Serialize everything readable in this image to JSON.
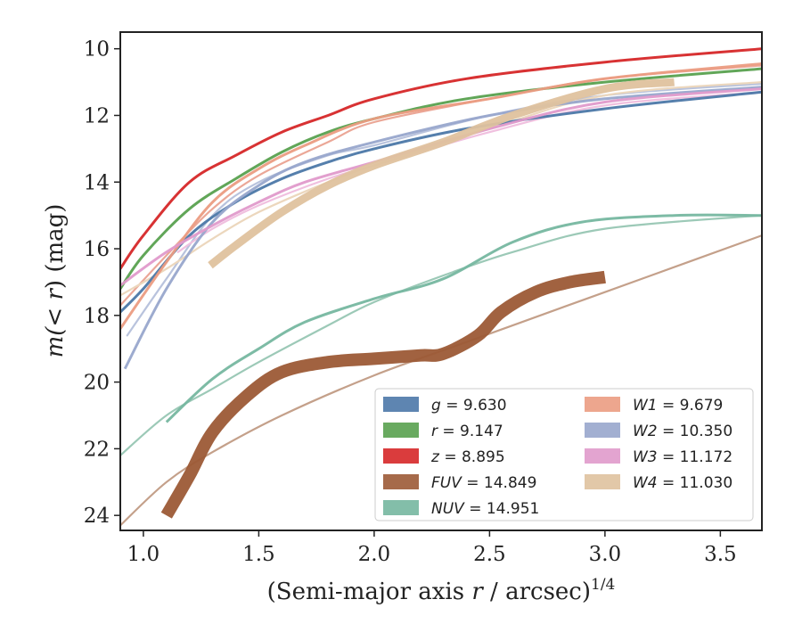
{
  "chart_data": {
    "type": "line",
    "title": "",
    "xlabel_main": "(Semi-major axis ",
    "xlabel_var": "r",
    "xlabel_tail": " / arcsec)",
    "xlabel_sup": "1/4",
    "ylabel_main": "m(",
    "ylabel_var": "< r",
    "ylabel_tail": ") (mag)",
    "xlim": [
      0.9,
      3.68
    ],
    "ylim": [
      24.45,
      9.5
    ],
    "y_inverted": true,
    "x_ticks": [
      1.0,
      1.5,
      2.0,
      2.5,
      3.0,
      3.5
    ],
    "x_tick_labels": [
      "1.0",
      "1.5",
      "2.0",
      "2.5",
      "3.0",
      "3.5"
    ],
    "y_ticks": [
      10,
      12,
      14,
      16,
      18,
      20,
      22,
      24
    ],
    "y_tick_labels": [
      "10",
      "12",
      "14",
      "16",
      "18",
      "20",
      "22",
      "24"
    ],
    "grid": false,
    "legend_position": "lower-right",
    "legend_columns": 2,
    "series": [
      {
        "band": "g",
        "value": "9.630",
        "color": "#4c78a8",
        "width": 3,
        "x": [
          0.9,
          1.0,
          1.2,
          1.4,
          1.6,
          1.8,
          2.0,
          2.4,
          3.0,
          3.68
        ],
        "y": [
          17.9,
          17.2,
          15.6,
          14.6,
          13.9,
          13.4,
          13.0,
          12.4,
          11.8,
          11.3
        ]
      },
      {
        "band": "r",
        "value": "9.147",
        "color": "#59a14f",
        "width": 3,
        "x": [
          0.9,
          1.0,
          1.2,
          1.4,
          1.6,
          1.8,
          2.0,
          2.4,
          3.0,
          3.68
        ],
        "y": [
          17.2,
          16.2,
          14.8,
          13.9,
          13.1,
          12.5,
          12.1,
          11.5,
          11.0,
          10.6
        ]
      },
      {
        "band": "z",
        "value": "8.895",
        "color": "#d62728",
        "width": 3,
        "x": [
          0.9,
          1.0,
          1.2,
          1.4,
          1.6,
          1.8,
          2.0,
          2.4,
          3.0,
          3.68
        ],
        "y": [
          16.6,
          15.6,
          14.0,
          13.2,
          12.5,
          12.0,
          11.5,
          10.9,
          10.4,
          10.0
        ]
      },
      {
        "band": "FUV",
        "value": "14.849",
        "color": "#9c5a36",
        "width": 14,
        "x": [
          1.1,
          1.2,
          1.3,
          1.45,
          1.6,
          1.8,
          2.0,
          2.2,
          2.3,
          2.45,
          2.55,
          2.7,
          2.85,
          3.0
        ],
        "y": [
          24.0,
          22.8,
          21.5,
          20.4,
          19.7,
          19.4,
          19.3,
          19.2,
          19.15,
          18.6,
          17.9,
          17.3,
          17.0,
          16.85
        ]
      },
      {
        "band": "NUV",
        "value": "14.951",
        "color": "#76b7a0",
        "width": 3,
        "x": [
          1.1,
          1.3,
          1.5,
          1.7,
          2.0,
          2.3,
          2.6,
          2.9,
          3.3,
          3.68
        ],
        "y": [
          21.2,
          19.9,
          19.0,
          18.2,
          17.5,
          16.9,
          15.8,
          15.2,
          15.0,
          15.0
        ]
      },
      {
        "band": "W1",
        "value": "9.679",
        "color": "#eb9c82",
        "width": 3,
        "x": [
          0.9,
          1.1,
          1.3,
          1.5,
          1.7,
          2.0,
          2.5,
          3.0,
          3.68
        ],
        "y": [
          18.4,
          16.4,
          14.6,
          13.6,
          12.9,
          12.1,
          11.5,
          10.9,
          10.45
        ]
      },
      {
        "band": "W2",
        "value": "10.350",
        "color": "#98a6cc",
        "width": 3,
        "x": [
          0.92,
          1.1,
          1.3,
          1.5,
          1.7,
          2.0,
          2.5,
          3.0,
          3.68
        ],
        "y": [
          19.6,
          17.2,
          15.2,
          14.1,
          13.4,
          12.8,
          12.0,
          11.5,
          11.15
        ]
      },
      {
        "band": "W3",
        "value": "11.172",
        "color": "#e09acb",
        "width": 3,
        "x": [
          0.9,
          1.1,
          1.3,
          1.5,
          1.7,
          2.0,
          2.5,
          3.0,
          3.68
        ],
        "y": [
          17.1,
          16.1,
          15.3,
          14.6,
          14.0,
          13.4,
          12.4,
          11.6,
          11.2
        ]
      },
      {
        "band": "W4",
        "value": "11.030",
        "color": "#dfc29e",
        "width": 9,
        "x": [
          1.29,
          1.4,
          1.6,
          1.8,
          2.0,
          2.3,
          2.6,
          3.0,
          3.3
        ],
        "y": [
          16.5,
          15.9,
          14.9,
          14.1,
          13.5,
          12.8,
          12.0,
          11.2,
          11.0
        ]
      }
    ],
    "thin_traces": [
      {
        "color": "#eba797",
        "x": [
          0.9,
          1.1,
          1.3,
          1.5,
          1.8,
          2.0,
          2.5,
          3.0,
          3.68
        ],
        "y": [
          17.7,
          16.2,
          14.8,
          13.8,
          12.8,
          12.2,
          11.5,
          10.9,
          10.5
        ]
      },
      {
        "color": "#b9c3dd",
        "x": [
          0.93,
          1.1,
          1.3,
          1.5,
          1.8,
          2.0,
          2.5,
          3.0,
          3.68
        ],
        "y": [
          18.6,
          16.9,
          15.0,
          14.0,
          13.2,
          12.9,
          12.0,
          11.4,
          11.05
        ]
      },
      {
        "color": "#f0c0df",
        "x": [
          1.15,
          1.3,
          1.5,
          1.8,
          2.0,
          2.5,
          3.0,
          3.68
        ],
        "y": [
          16.1,
          15.4,
          14.7,
          13.9,
          13.5,
          12.5,
          11.7,
          11.3
        ]
      },
      {
        "color": "#ecd7bd",
        "x": [
          0.9,
          1.1,
          1.3,
          1.5,
          1.8,
          2.0,
          2.5,
          3.0,
          3.68
        ],
        "y": [
          17.4,
          16.6,
          15.7,
          14.9,
          14.0,
          13.5,
          12.4,
          11.4,
          11.0
        ]
      },
      {
        "color": "#9cc9b7",
        "x": [
          0.9,
          1.1,
          1.3,
          1.5,
          1.8,
          2.0,
          2.3,
          2.6,
          3.0,
          3.68
        ],
        "y": [
          22.2,
          21.0,
          20.2,
          19.4,
          18.3,
          17.6,
          16.8,
          16.1,
          15.4,
          15.0
        ]
      },
      {
        "color": "#c4a08a",
        "x": [
          0.9,
          1.1,
          1.3,
          1.6,
          2.0,
          2.4,
          2.8,
          3.2,
          3.68
        ],
        "y": [
          24.3,
          23.0,
          22.1,
          21.0,
          19.8,
          18.8,
          17.8,
          16.8,
          15.6
        ]
      }
    ]
  }
}
